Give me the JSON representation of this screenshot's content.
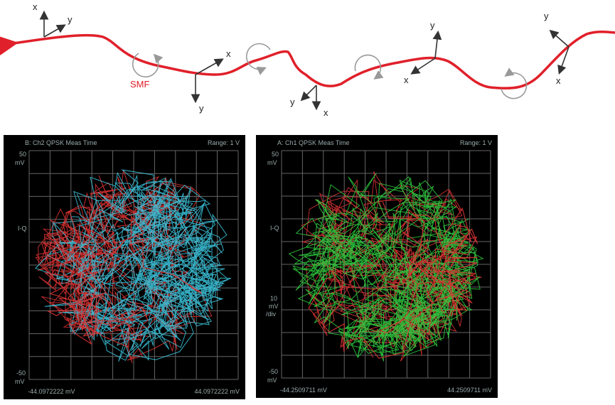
{
  "diagram": {
    "fiber_label": "SMF",
    "frames": [
      {
        "x": "x",
        "y": "y"
      },
      {
        "x": "x",
        "y": "y"
      },
      {
        "x": "x",
        "y": "y"
      },
      {
        "x": "x",
        "y": "y"
      },
      {
        "x": "x",
        "y": "y"
      }
    ]
  },
  "panels": [
    {
      "title": "B: Ch2 QPSK Meas Time",
      "range": "Range: 1 V",
      "top": "50",
      "top_unit": "mV",
      "middle": "I-Q",
      "bottom": "-50",
      "bottom_unit": "mV",
      "left": "-44.0972222 mV",
      "right": "44.0972222 mV"
    },
    {
      "title": "A: Ch1 QPSK Meas Time",
      "range": "Range: 1 V",
      "top": "50",
      "top_unit": "mV",
      "middle": "I-Q",
      "div": "10",
      "div_unit": "mV",
      "div_per": "/div",
      "bottom": "-50",
      "bottom_unit": "mV",
      "left": "-44.2509711 mV",
      "right": "44.2509711 mV"
    }
  ]
}
